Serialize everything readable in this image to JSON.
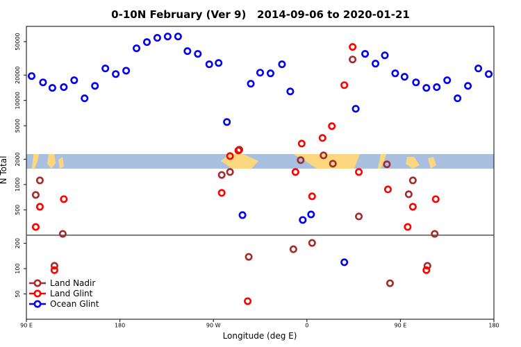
{
  "chart_data": {
    "type": "scatter",
    "title": "0-10N February (Ver 9)   2014-09-06 to 2020-01-21",
    "x_label": "Longitude (deg E)",
    "y_label": "N Total",
    "xlim": [
      90,
      540
    ],
    "ylim": [
      25,
      76000
    ],
    "log_y": true,
    "xticks": [
      {
        "value": 90,
        "label": "90 E"
      },
      180,
      {
        "value": 270,
        "label": "90 W"
      },
      {
        "value": 360,
        "label": "0"
      },
      {
        "value": 450,
        "label": "90 E"
      },
      {
        "value": 540,
        "label": "180"
      }
    ],
    "yticks": [
      50,
      100,
      200,
      500,
      1000,
      2000,
      5000,
      10000,
      20000,
      50000
    ],
    "hline": 250,
    "legend": "lower left",
    "series": [
      {
        "name": "Land Nadir",
        "color": "#a52a2a",
        "x": [
          99,
          103,
          117,
          125,
          278,
          286,
          295,
          304,
          347,
          354,
          365,
          376,
          385,
          404,
          410,
          437,
          440,
          458,
          462,
          476,
          483
        ],
        "values": [
          752,
          1120,
          108,
          259,
          1300,
          1410,
          2590,
          138,
          170,
          1950,
          202,
          2220,
          1770,
          30700,
          417,
          1740,
          67,
          766,
          1120,
          108,
          259
        ]
      },
      {
        "name": "Land Glint",
        "color": "#ff0000",
        "x": [
          99,
          103,
          117,
          126,
          278,
          286,
          294,
          303,
          349,
          355,
          365,
          375,
          384,
          396,
          404,
          410,
          438,
          457,
          462,
          475,
          484
        ],
        "values": [
          313,
          544,
          96,
          670,
          796,
          2180,
          2540,
          41,
          1410,
          3070,
          724,
          3580,
          4950,
          15200,
          43300,
          1410,
          875,
          313,
          544,
          96,
          670
        ]
      },
      {
        "name": "Ocean Glint",
        "color": "#0000ee",
        "x": [
          95,
          106,
          115,
          126,
          136,
          146,
          156,
          166,
          176,
          186,
          196,
          206,
          216,
          226,
          236,
          245,
          255,
          266,
          275,
          283,
          298,
          306,
          315,
          325,
          336,
          344,
          356,
          364,
          396,
          407,
          416,
          426,
          435,
          445,
          454,
          465,
          475,
          485,
          495,
          505,
          515,
          525,
          535
        ],
        "values": [
          19500,
          16400,
          14100,
          14400,
          17400,
          10600,
          14900,
          24000,
          20600,
          22600,
          41700,
          49400,
          55500,
          57600,
          57600,
          38600,
          35800,
          26900,
          27900,
          5540,
          433,
          15800,
          21400,
          21000,
          26900,
          12800,
          379,
          441,
          119,
          7960,
          35800,
          27400,
          34400,
          21000,
          19100,
          16400,
          14100,
          14400,
          17400,
          10600,
          14900,
          24000,
          20600
        ]
      }
    ]
  }
}
